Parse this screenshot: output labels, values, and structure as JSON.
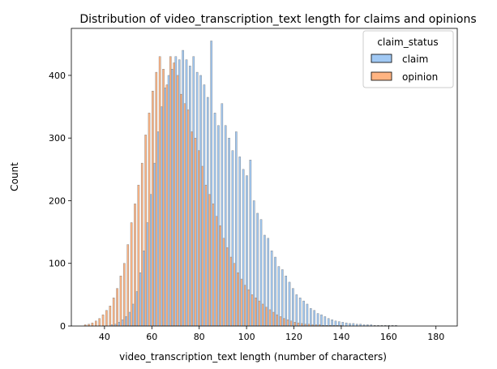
{
  "chart_data": {
    "type": "bar",
    "title": "Distribution of video_transcription_text length for claims and opinions",
    "xlabel": "video_transcription_text length (number of characters)",
    "ylabel": "Count",
    "xlim": [
      26,
      189
    ],
    "ylim": [
      0,
      475
    ],
    "xticks": [
      40,
      60,
      80,
      100,
      120,
      140,
      160,
      180
    ],
    "yticks": [
      0,
      100,
      200,
      300,
      400
    ],
    "bin_width": 1.5,
    "grid": false,
    "legend": {
      "title": "claim_status",
      "placement": "top-right"
    },
    "bins_start": [
      31.5,
      33,
      34.5,
      36,
      37.5,
      39,
      40.5,
      42,
      43.5,
      45,
      46.5,
      48,
      49.5,
      51,
      52.5,
      54,
      55.5,
      57,
      58.5,
      60,
      61.5,
      63,
      64.5,
      66,
      67.5,
      69,
      70.5,
      72,
      73.5,
      75,
      76.5,
      78,
      79.5,
      81,
      82.5,
      84,
      85.5,
      87,
      88.5,
      90,
      91.5,
      93,
      94.5,
      96,
      97.5,
      99,
      100.5,
      102,
      103.5,
      105,
      106.5,
      108,
      109.5,
      111,
      112.5,
      114,
      115.5,
      117,
      118.5,
      120,
      121.5,
      123,
      124.5,
      126,
      127.5,
      129,
      130.5,
      132,
      133.5,
      135,
      136.5,
      138,
      139.5,
      141,
      142.5,
      144,
      145.5,
      147,
      148.5,
      150,
      151.5,
      153,
      154.5,
      156,
      157.5,
      159,
      160.5,
      162,
      163.5,
      165,
      166.5,
      168,
      169.5,
      171,
      172.5,
      174,
      175.5,
      177,
      178.5,
      180
    ],
    "series": [
      {
        "name": "claim",
        "color": "#a1c9f4",
        "values": [
          0,
          0,
          0,
          0,
          0,
          0,
          0,
          2,
          3,
          6,
          10,
          15,
          22,
          35,
          55,
          85,
          120,
          165,
          210,
          260,
          310,
          350,
          380,
          400,
          410,
          430,
          425,
          440,
          425,
          415,
          430,
          405,
          400,
          385,
          365,
          455,
          340,
          320,
          355,
          320,
          300,
          280,
          310,
          270,
          250,
          240,
          265,
          200,
          180,
          170,
          145,
          140,
          120,
          110,
          95,
          90,
          80,
          70,
          60,
          50,
          45,
          40,
          35,
          28,
          25,
          20,
          18,
          15,
          12,
          10,
          8,
          7,
          6,
          5,
          4,
          4,
          3,
          3,
          2,
          2,
          2,
          1,
          1,
          1,
          1,
          1,
          1,
          1,
          0,
          0,
          0,
          0,
          0,
          0,
          0,
          0,
          0,
          0,
          0,
          0
        ]
      },
      {
        "name": "opinion",
        "color": "#ffb482",
        "values": [
          2,
          3,
          5,
          8,
          12,
          18,
          25,
          32,
          45,
          60,
          80,
          100,
          130,
          165,
          195,
          225,
          260,
          305,
          340,
          375,
          405,
          430,
          410,
          385,
          430,
          420,
          400,
          370,
          355,
          345,
          310,
          300,
          280,
          255,
          225,
          210,
          195,
          175,
          160,
          140,
          125,
          110,
          100,
          85,
          75,
          65,
          58,
          50,
          45,
          40,
          35,
          30,
          26,
          22,
          18,
          15,
          12,
          10,
          8,
          6,
          5,
          4,
          3,
          3,
          2,
          2,
          2,
          1,
          1,
          1,
          1,
          1,
          1,
          0,
          0,
          0,
          0,
          0,
          0,
          0,
          0,
          0,
          0,
          0,
          0,
          0,
          0,
          0,
          0,
          0,
          0,
          0,
          0,
          0,
          0,
          0,
          0,
          0,
          0,
          0
        ]
      }
    ]
  }
}
